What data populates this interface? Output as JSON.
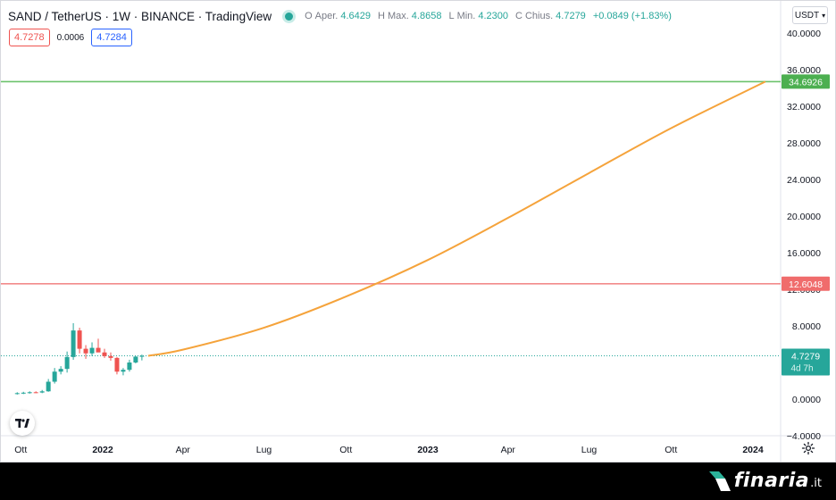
{
  "legend": {
    "symbol": "SAND / TetherUS · 1W · BINANCE · TradingView",
    "ohlc": [
      {
        "key": "O",
        "label": "Aper.",
        "value": "4.6429"
      },
      {
        "key": "H",
        "label": "Max.",
        "value": "4.8658"
      },
      {
        "key": "L",
        "label": "Min.",
        "value": "4.2300"
      },
      {
        "key": "C",
        "label": "Chius.",
        "value": "4.7279"
      }
    ],
    "change": "+0.0849 (+1.83%)"
  },
  "quote": {
    "bid": "4.7278",
    "spread": "0.0006",
    "ask": "4.7284"
  },
  "currency": "USDT",
  "colors": {
    "up": "#26a69a",
    "down": "#ef5350",
    "curve": "#f5a33b",
    "resistance": "#6cc26c",
    "support": "#f28b8b",
    "last_price": "#26a69a"
  },
  "brand": {
    "name": "finaria",
    "tld": ".it"
  },
  "chart_data": {
    "type": "candlestick",
    "x_axis": {
      "ticks": [
        {
          "label": "Ott",
          "date": "2021-10-01",
          "bold": false
        },
        {
          "label": "2022",
          "date": "2022-01-01",
          "bold": true
        },
        {
          "label": "Apr",
          "date": "2022-04-01",
          "bold": false
        },
        {
          "label": "Lug",
          "date": "2022-07-01",
          "bold": false
        },
        {
          "label": "Ott",
          "date": "2022-10-01",
          "bold": false
        },
        {
          "label": "2023",
          "date": "2023-01-01",
          "bold": true
        },
        {
          "label": "Apr",
          "date": "2023-04-01",
          "bold": false
        },
        {
          "label": "Lug",
          "date": "2023-07-01",
          "bold": false
        },
        {
          "label": "Ott",
          "date": "2023-10-01",
          "bold": false
        },
        {
          "label": "2024",
          "date": "2024-01-01",
          "bold": true
        }
      ]
    },
    "y_axis": {
      "ticks": [
        "40.0000",
        "36.0000",
        "32.0000",
        "28.0000",
        "24.0000",
        "20.0000",
        "16.0000",
        "12.0000",
        "8.0000",
        "4.0000",
        "0.0000",
        "−4.0000"
      ],
      "range": [
        -4,
        40
      ]
    },
    "candles": [
      {
        "date": "2021-09-27",
        "o": 0.6,
        "h": 0.75,
        "l": 0.5,
        "c": 0.65
      },
      {
        "date": "2021-10-04",
        "o": 0.65,
        "h": 0.8,
        "l": 0.55,
        "c": 0.7
      },
      {
        "date": "2021-10-11",
        "o": 0.7,
        "h": 0.85,
        "l": 0.6,
        "c": 0.75
      },
      {
        "date": "2021-10-18",
        "o": 0.75,
        "h": 0.85,
        "l": 0.65,
        "c": 0.72
      },
      {
        "date": "2021-10-25",
        "o": 0.72,
        "h": 1.0,
        "l": 0.65,
        "c": 0.85
      },
      {
        "date": "2021-11-01",
        "o": 0.85,
        "h": 2.2,
        "l": 0.8,
        "c": 1.9
      },
      {
        "date": "2021-11-08",
        "o": 1.9,
        "h": 3.4,
        "l": 1.7,
        "c": 3.0
      },
      {
        "date": "2021-11-15",
        "o": 3.0,
        "h": 3.6,
        "l": 2.7,
        "c": 3.3
      },
      {
        "date": "2021-11-22",
        "o": 3.3,
        "h": 5.2,
        "l": 2.9,
        "c": 4.6
      },
      {
        "date": "2021-11-29",
        "o": 4.6,
        "h": 8.3,
        "l": 4.3,
        "c": 7.5
      },
      {
        "date": "2021-12-06",
        "o": 7.5,
        "h": 7.8,
        "l": 5.0,
        "c": 5.5
      },
      {
        "date": "2021-12-13",
        "o": 5.5,
        "h": 5.9,
        "l": 4.4,
        "c": 5.0
      },
      {
        "date": "2021-12-20",
        "o": 5.0,
        "h": 6.2,
        "l": 4.7,
        "c": 5.6
      },
      {
        "date": "2021-12-27",
        "o": 5.6,
        "h": 6.6,
        "l": 5.2,
        "c": 5.1
      },
      {
        "date": "2022-01-03",
        "o": 5.1,
        "h": 5.5,
        "l": 4.5,
        "c": 4.7
      },
      {
        "date": "2022-01-10",
        "o": 4.7,
        "h": 5.1,
        "l": 4.2,
        "c": 4.5
      },
      {
        "date": "2022-01-17",
        "o": 4.5,
        "h": 4.6,
        "l": 2.7,
        "c": 3.0
      },
      {
        "date": "2022-01-24",
        "o": 3.0,
        "h": 3.4,
        "l": 2.6,
        "c": 3.2
      },
      {
        "date": "2022-01-31",
        "o": 3.2,
        "h": 4.3,
        "l": 3.0,
        "c": 4.0
      },
      {
        "date": "2022-02-07",
        "o": 4.0,
        "h": 4.7,
        "l": 3.9,
        "c": 4.6429
      },
      {
        "date": "2022-02-14",
        "o": 4.6429,
        "h": 4.8658,
        "l": 4.23,
        "c": 4.7279
      }
    ],
    "projection_curve": [
      {
        "date": "2022-02-21",
        "y": 4.73
      },
      {
        "date": "2022-04-01",
        "y": 5.4
      },
      {
        "date": "2022-07-01",
        "y": 7.8
      },
      {
        "date": "2022-10-01",
        "y": 11.2
      },
      {
        "date": "2023-01-01",
        "y": 15.2
      },
      {
        "date": "2023-04-01",
        "y": 19.8
      },
      {
        "date": "2023-07-01",
        "y": 24.7
      },
      {
        "date": "2023-10-01",
        "y": 29.6
      },
      {
        "date": "2024-01-15",
        "y": 34.6926
      }
    ],
    "horizontal_lines": [
      {
        "name": "resistance",
        "value": 34.6926,
        "label": "34.6926",
        "color": "#6cc26c"
      },
      {
        "name": "support",
        "value": 12.6048,
        "label": "12.6048",
        "color": "#f28b8b"
      }
    ],
    "last_price": {
      "value": 4.7279,
      "label": "4.7279",
      "countdown": "4d 7h"
    }
  }
}
